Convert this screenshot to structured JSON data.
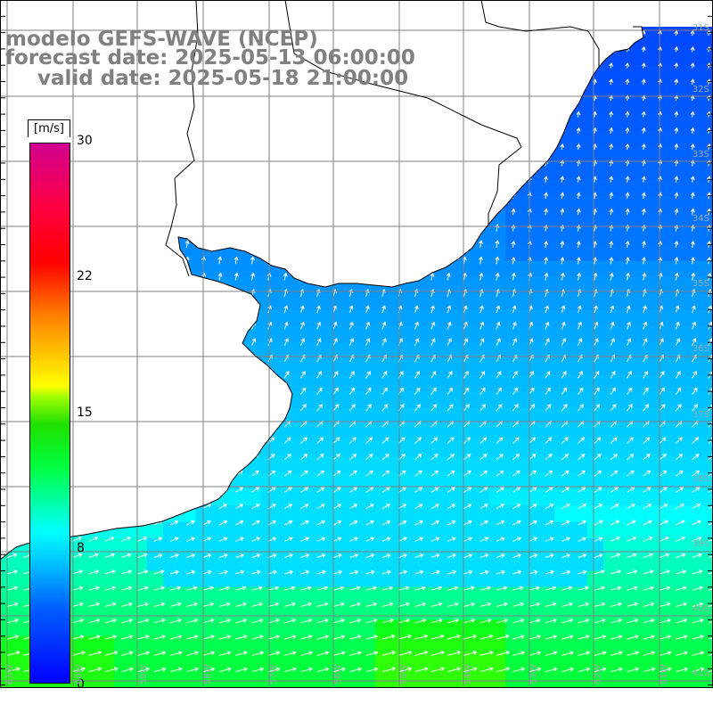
{
  "title": {
    "line1": "modelo GEFS-WAVE (NCEP)",
    "line2": "forecast date: 2025-05-13 06:00:00",
    "line3": "valid date: 2025-05-18 21:00:00"
  },
  "colorbar": {
    "unit": "[m/s]",
    "ticks": [
      "30",
      "22",
      "15",
      "8",
      "0"
    ],
    "min": 0,
    "max": 30
  },
  "lat_labels": [
    "31S",
    "32S",
    "33S",
    "34S",
    "35S",
    "36S",
    "37S",
    "38S",
    "39S",
    "40S",
    "41S"
  ],
  "lon_labels": [
    "61W",
    "60W",
    "59W",
    "58W",
    "57W",
    "56W",
    "55W",
    "54W",
    "53W",
    "52W",
    "51W"
  ],
  "colors": {
    "land": "#ffffff",
    "coast": "#000000",
    "grid": "#808080",
    "arrow": "#ffffff"
  }
}
